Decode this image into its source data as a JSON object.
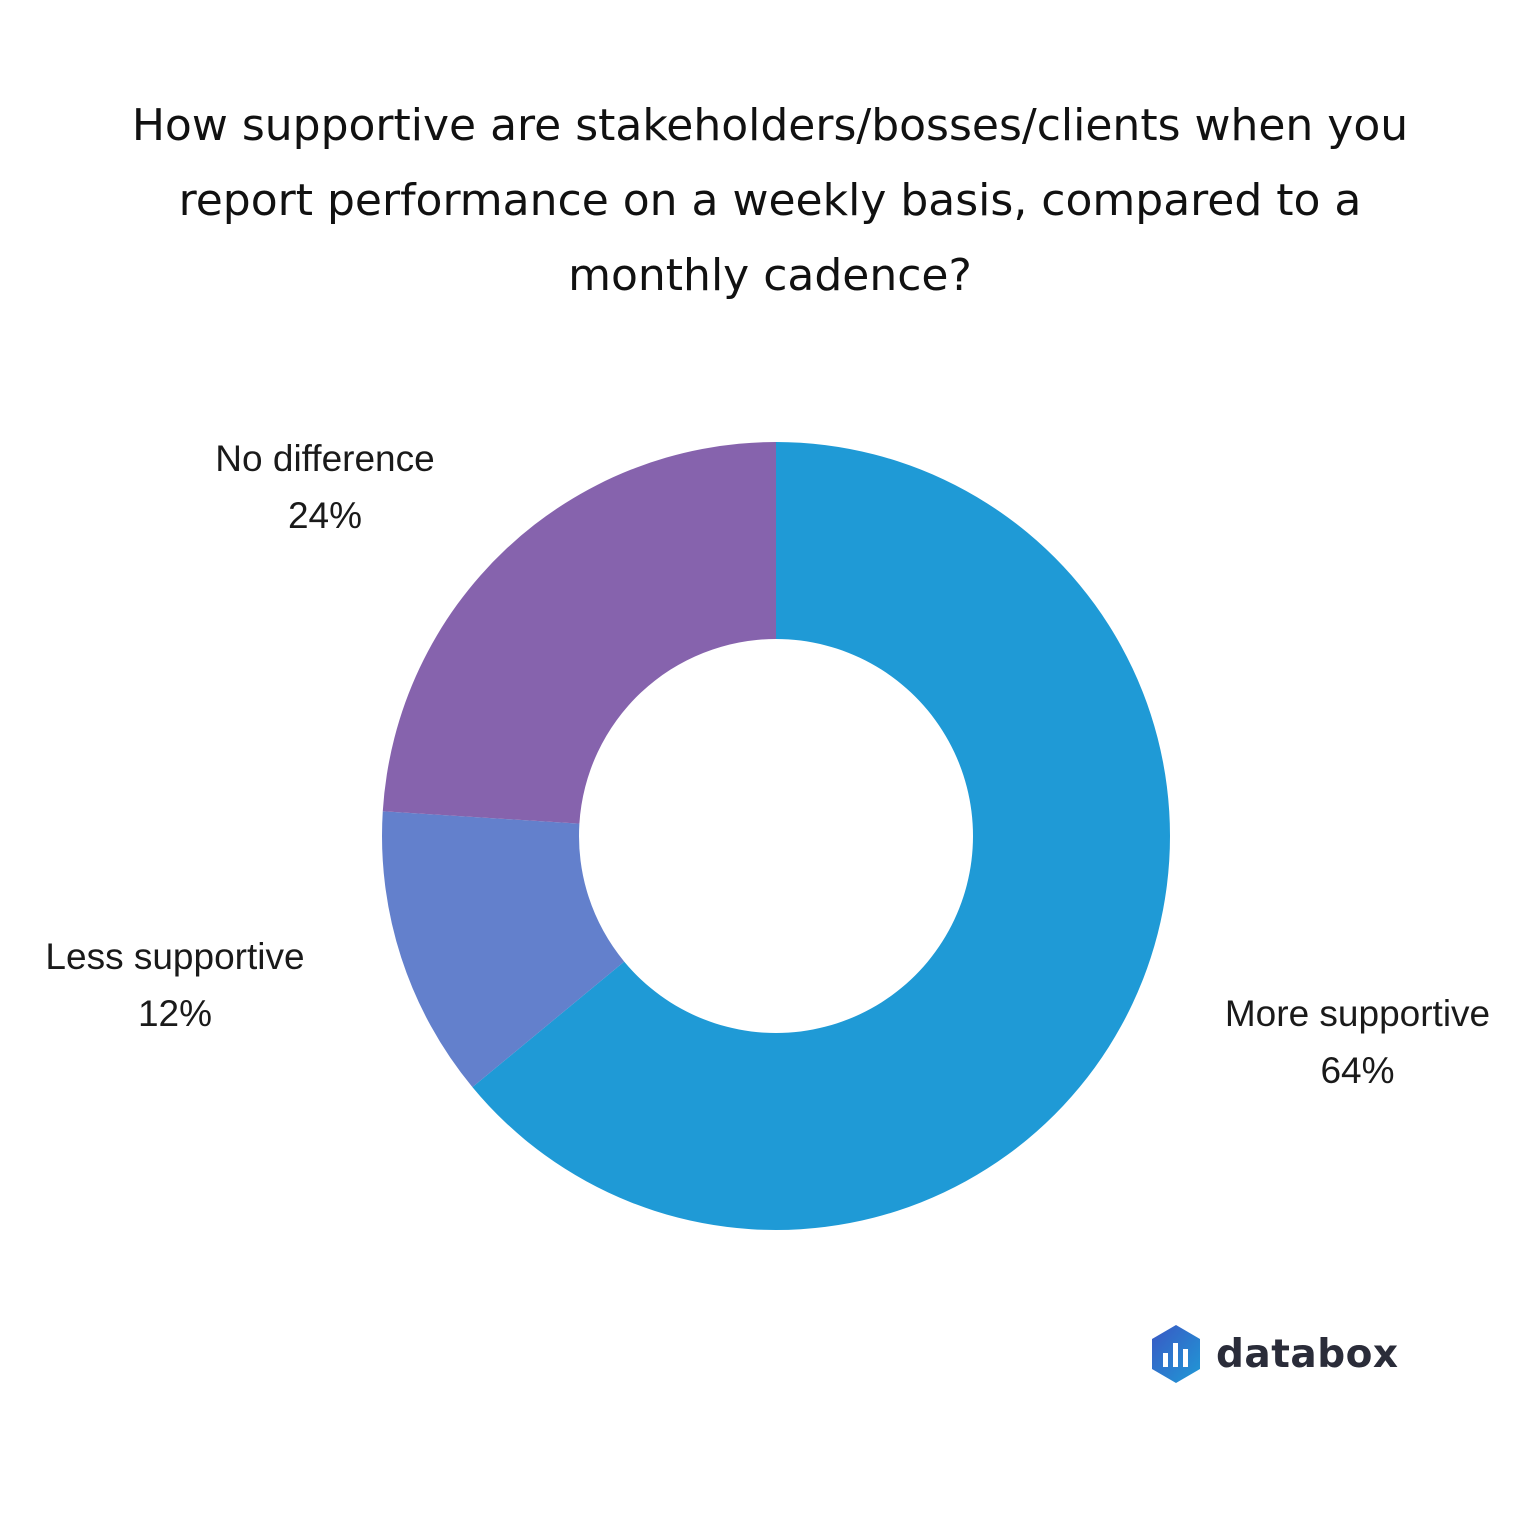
{
  "chart_data": {
    "type": "pie",
    "title": "How supportive are stakeholders/bosses/clients when you report performance on a weekly basis, compared to a monthly cadence?",
    "slices": [
      {
        "label": "More supportive",
        "value": 64,
        "value_label": "64%",
        "color": "#1f9ad6"
      },
      {
        "label": "Less supportive",
        "value": 12,
        "value_label": "12%",
        "color": "#6380cc"
      },
      {
        "label": "No difference",
        "value": 24,
        "value_label": "24%",
        "color": "#8663ad"
      }
    ],
    "unit": "%",
    "legend": "none"
  },
  "brand": {
    "name": "databox",
    "icon": "databox-logo-icon",
    "colors": [
      "#3a57c4",
      "#1f9ad6"
    ]
  }
}
